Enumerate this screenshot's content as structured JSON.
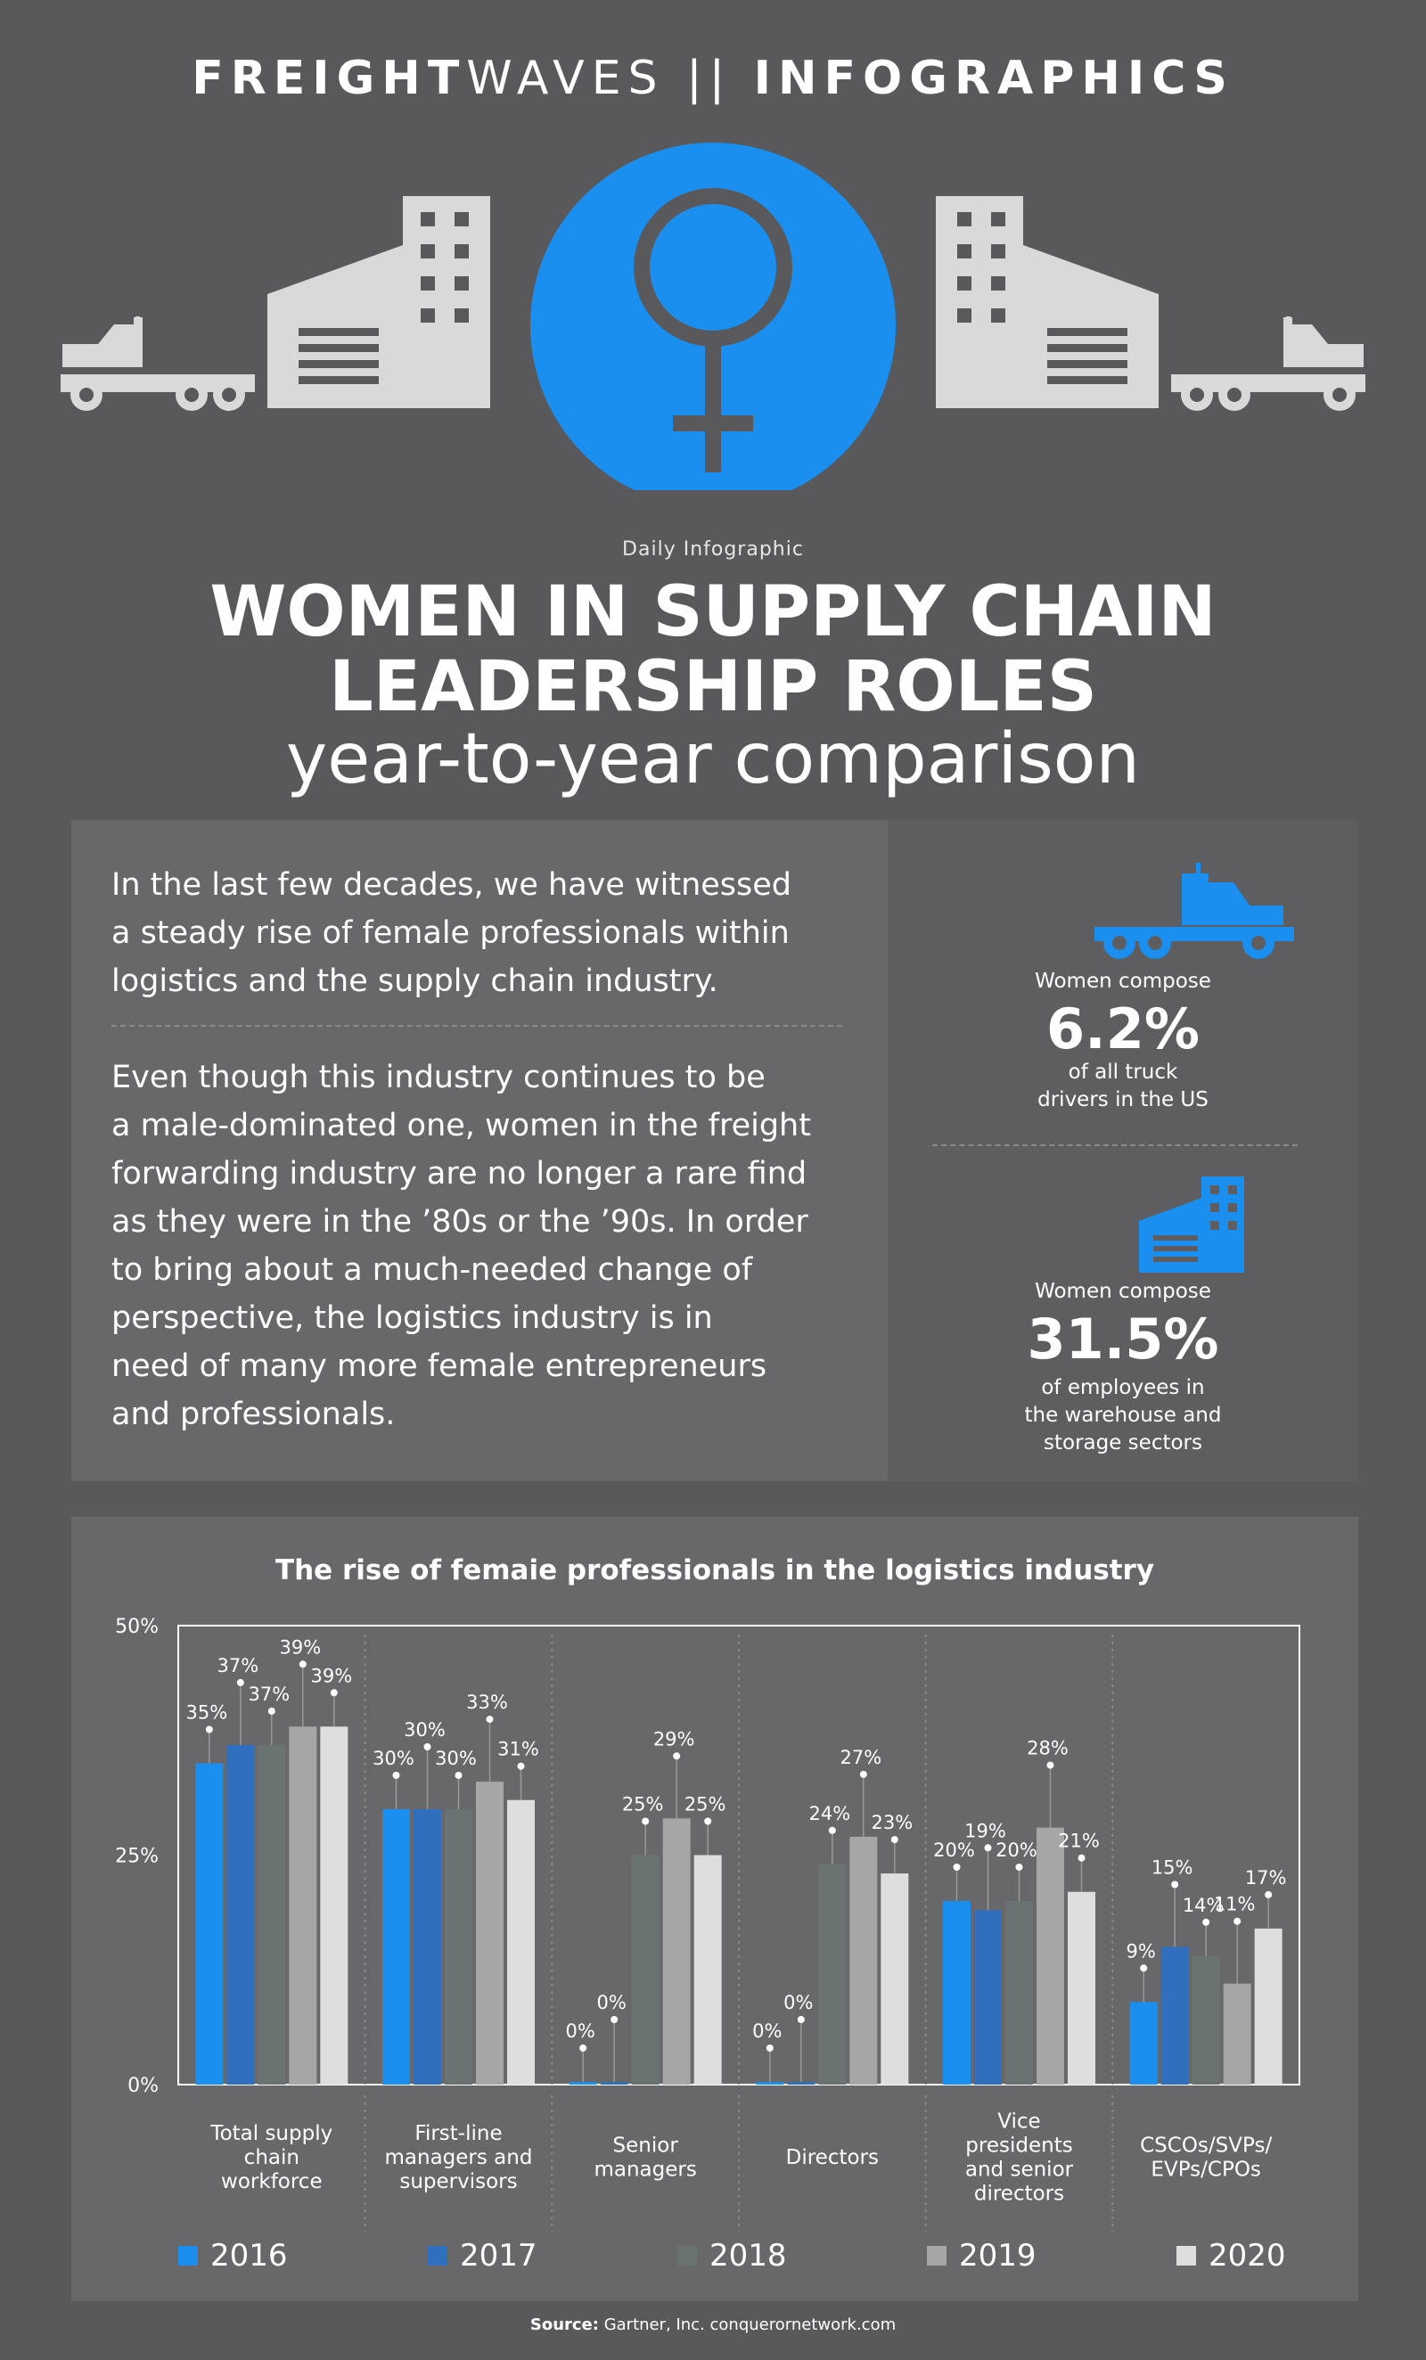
{
  "header": {
    "brand_bold": "FREIGHT",
    "brand_light": "WAVES",
    "separator": "||",
    "brand_section": "INFOGRAPHICS"
  },
  "hero": {
    "icons": [
      "truck-icon",
      "warehouse-icon",
      "female-symbol-icon",
      "warehouse-icon",
      "truck-icon"
    ],
    "circle_color": "#1a8ff0"
  },
  "kicker": "Daily Infographic",
  "title_line1": "WOMEN IN SUPPLY CHAIN",
  "title_line2": "LEADERSHIP ROLES",
  "subtitle": "year-to-year comparison",
  "intro": {
    "paragraph1_lines": [
      "In the last few decades, we have witnessed",
      "a steady rise of female professionals within",
      "logistics and the supply chain industry."
    ],
    "paragraph2_lines": [
      "Even though this industry continues to be",
      "a male-dominated one, women in the freight",
      "forwarding industry are no longer a rare find",
      "as they were in the ’80s or the ’90s. In order",
      "to bring about a much-needed change of",
      "perspective, the logistics industry is in",
      "need of many more female entrepreneurs",
      "and professionals."
    ]
  },
  "stats": [
    {
      "icon": "truck-icon",
      "pre": "Women compose",
      "value": "6.2%",
      "post_lines": [
        "of all truck",
        "drivers in the US"
      ]
    },
    {
      "icon": "warehouse-icon",
      "pre": "Women compose",
      "value": "31.5%",
      "post_lines": [
        "of employees in",
        "the warehouse and",
        "storage sectors"
      ]
    }
  ],
  "chart_data": {
    "type": "bar",
    "title": "The rise of femaie professionals in the logistics industry",
    "categories": [
      [
        "Total supply",
        "chain",
        "workforce"
      ],
      [
        "First-line",
        "managers and",
        "supervisors"
      ],
      [
        "Senior",
        "managers"
      ],
      [
        "Directors"
      ],
      [
        "Vice",
        "presidents",
        "and senior",
        "directors"
      ],
      [
        "CSCOs/SVPs/",
        "EVPs/CPOs"
      ]
    ],
    "series": [
      {
        "name": "2016",
        "color": "#1a8ff0",
        "values": [
          35,
          30,
          0,
          0,
          20,
          9
        ]
      },
      {
        "name": "2017",
        "color": "#2f6fbd",
        "values": [
          37,
          30,
          0,
          0,
          19,
          15
        ]
      },
      {
        "name": "2018",
        "color": "#6b7372",
        "values": [
          37,
          30,
          25,
          24,
          20,
          14
        ]
      },
      {
        "name": "2019",
        "color": "#a6a6a6",
        "values": [
          39,
          33,
          29,
          27,
          28,
          11
        ]
      },
      {
        "name": "2020",
        "color": "#dedede",
        "values": [
          39,
          31,
          25,
          23,
          21,
          17
        ]
      }
    ],
    "value_suffix": "%",
    "ylim": [
      0,
      50
    ],
    "yticks": [
      "0%",
      "25%",
      "50%"
    ],
    "ytick_values": [
      0,
      25,
      50
    ],
    "legend_position": "bottom",
    "grid": false
  },
  "source": {
    "label": "Source:",
    "text": "Gartner, Inc. conquerornetwork.com"
  }
}
